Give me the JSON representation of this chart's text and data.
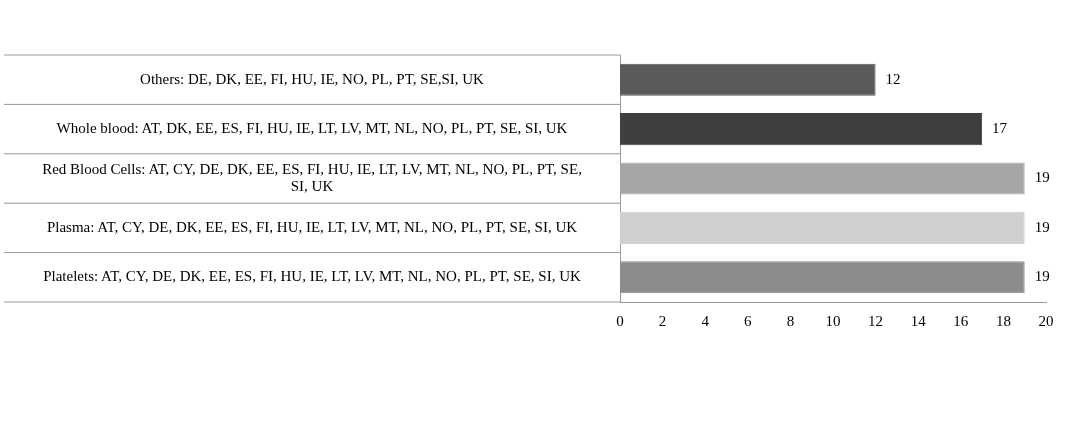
{
  "chart_data": {
    "type": "bar",
    "orientation": "horizontal",
    "categories": [
      "Others: DE, DK, EE, FI, HU, IE, NO, PL, PT, SE,SI, UK",
      "Whole blood: AT, DK, EE, ES, FI, HU, IE, LT, LV, MT, NL, NO, PL, PT, SE, SI, UK",
      "Red Blood Cells: AT, CY, DE, DK, EE, ES, FI, HU, IE, LT, LV, MT, NL, NO, PL, PT, SE, SI, UK",
      "Plasma: AT, CY, DE, DK, EE, ES, FI, HU, IE, LT, LV, MT, NL, NO, PL, PT, SE, SI, UK",
      "Platelets: AT, CY, DE, DK, EE, ES, FI, HU, IE, LT, LV, MT, NL, NO, PL, PT, SE, SI, UK"
    ],
    "values": [
      12,
      17,
      19,
      19,
      19
    ],
    "colors": [
      "#5a5a5a",
      "#3f3f3f",
      "#a6a6a6",
      "#cfcfcf",
      "#8c8c8c"
    ],
    "xlim": [
      0,
      20
    ],
    "xticks": [
      0,
      2,
      4,
      6,
      8,
      10,
      12,
      14,
      16,
      18,
      20
    ],
    "data_labels": true,
    "grid": false,
    "legend": false
  }
}
